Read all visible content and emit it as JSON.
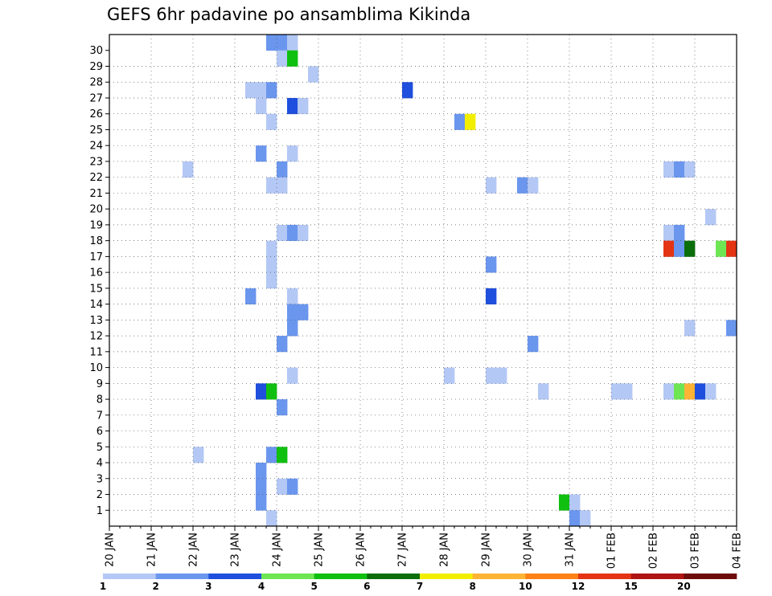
{
  "chart_data": {
    "type": "heatmap",
    "title": "GEFS 6hr padavine po ansamblima Kikinda",
    "xlabel": "",
    "ylabel": "",
    "x_ticks": [
      "20 JAN",
      "21 JAN",
      "22 JAN",
      "23 JAN",
      "24 JAN",
      "25 JAN",
      "26 JAN",
      "27 JAN",
      "28 JAN",
      "29 JAN",
      "30 JAN",
      "31 JAN",
      "01 FEB",
      "02 FEB",
      "03 FEB",
      "04 FEB"
    ],
    "y_ticks": [
      "1",
      "2",
      "3",
      "4",
      "5",
      "6",
      "7",
      "8",
      "9",
      "10",
      "11",
      "12",
      "13",
      "14",
      "15",
      "16",
      "17",
      "18",
      "19",
      "20",
      "21",
      "22",
      "23",
      "24",
      "25",
      "26",
      "27",
      "28",
      "29",
      "30"
    ],
    "x_range": [
      "20 JAN 00z",
      "04 FEB 00z"
    ],
    "time_step_hours": 6,
    "y_range": [
      0,
      30
    ],
    "grid": true,
    "legend": {
      "placement": "bottom",
      "levels": [
        "1",
        "2",
        "3",
        "4",
        "5",
        "6",
        "7",
        "8",
        "10",
        "12",
        "15",
        "20"
      ],
      "colors": [
        "#b4c8f5",
        "#6a96ee",
        "#1e4fdd",
        "#6ee654",
        "#10c010",
        "#0a6e0a",
        "#f2ee00",
        "#fdb434",
        "#fc8216",
        "#e43414",
        "#b01414",
        "#6e0c0c"
      ]
    },
    "cells_note": "each cell: [time index (6h steps from 20 JAN 00z), member row, precipitation category 1-12]",
    "cells": [
      [
        15,
        30,
        2
      ],
      [
        16,
        30,
        2
      ],
      [
        17,
        30,
        1
      ],
      [
        16,
        29,
        1
      ],
      [
        17,
        29,
        5
      ],
      [
        19,
        28,
        1
      ],
      [
        13,
        27,
        1
      ],
      [
        14,
        27,
        1
      ],
      [
        15,
        27,
        2
      ],
      [
        28,
        27,
        3
      ],
      [
        14,
        26,
        1
      ],
      [
        17,
        26,
        3
      ],
      [
        18,
        26,
        1
      ],
      [
        15,
        25,
        1
      ],
      [
        33,
        25,
        2
      ],
      [
        34,
        25,
        7
      ],
      [
        14,
        23,
        2
      ],
      [
        17,
        23,
        1
      ],
      [
        7,
        22,
        1
      ],
      [
        16,
        22,
        2
      ],
      [
        53,
        22,
        1
      ],
      [
        54,
        22,
        2
      ],
      [
        55,
        22,
        1
      ],
      [
        15,
        21,
        1
      ],
      [
        16,
        21,
        1
      ],
      [
        36,
        21,
        1
      ],
      [
        39,
        21,
        2
      ],
      [
        40,
        21,
        1
      ],
      [
        57,
        19,
        1
      ],
      [
        16,
        18,
        1
      ],
      [
        17,
        18,
        2
      ],
      [
        18,
        18,
        1
      ],
      [
        53,
        18,
        1
      ],
      [
        54,
        18,
        2
      ],
      [
        15,
        17,
        1
      ],
      [
        53,
        17,
        10
      ],
      [
        54,
        17,
        2
      ],
      [
        55,
        17,
        6
      ],
      [
        58,
        17,
        4
      ],
      [
        59,
        17,
        10
      ],
      [
        15,
        16,
        1
      ],
      [
        36,
        16,
        2
      ],
      [
        15,
        15,
        1
      ],
      [
        13,
        14,
        2
      ],
      [
        17,
        14,
        1
      ],
      [
        36,
        14,
        3
      ],
      [
        17,
        13,
        2
      ],
      [
        18,
        13,
        2
      ],
      [
        17,
        12,
        2
      ],
      [
        55,
        12,
        1
      ],
      [
        59,
        12,
        2
      ],
      [
        16,
        11,
        2
      ],
      [
        40,
        11,
        2
      ],
      [
        17,
        9,
        1
      ],
      [
        32,
        9,
        1
      ],
      [
        36,
        9,
        1
      ],
      [
        37,
        9,
        1
      ],
      [
        14,
        8,
        3
      ],
      [
        15,
        8,
        5
      ],
      [
        41,
        8,
        1
      ],
      [
        48,
        8,
        1
      ],
      [
        49,
        8,
        1
      ],
      [
        53,
        8,
        1
      ],
      [
        54,
        8,
        4
      ],
      [
        55,
        8,
        8
      ],
      [
        56,
        8,
        3
      ],
      [
        57,
        8,
        1
      ],
      [
        16,
        7,
        2
      ],
      [
        8,
        4,
        1
      ],
      [
        15,
        4,
        2
      ],
      [
        16,
        4,
        5
      ],
      [
        14,
        3,
        2
      ],
      [
        14,
        2,
        2
      ],
      [
        16,
        2,
        1
      ],
      [
        17,
        2,
        2
      ],
      [
        14,
        1,
        2
      ],
      [
        43,
        1,
        5
      ],
      [
        44,
        1,
        1
      ],
      [
        15,
        0,
        1
      ],
      [
        44,
        0,
        2
      ],
      [
        45,
        0,
        1
      ]
    ]
  }
}
